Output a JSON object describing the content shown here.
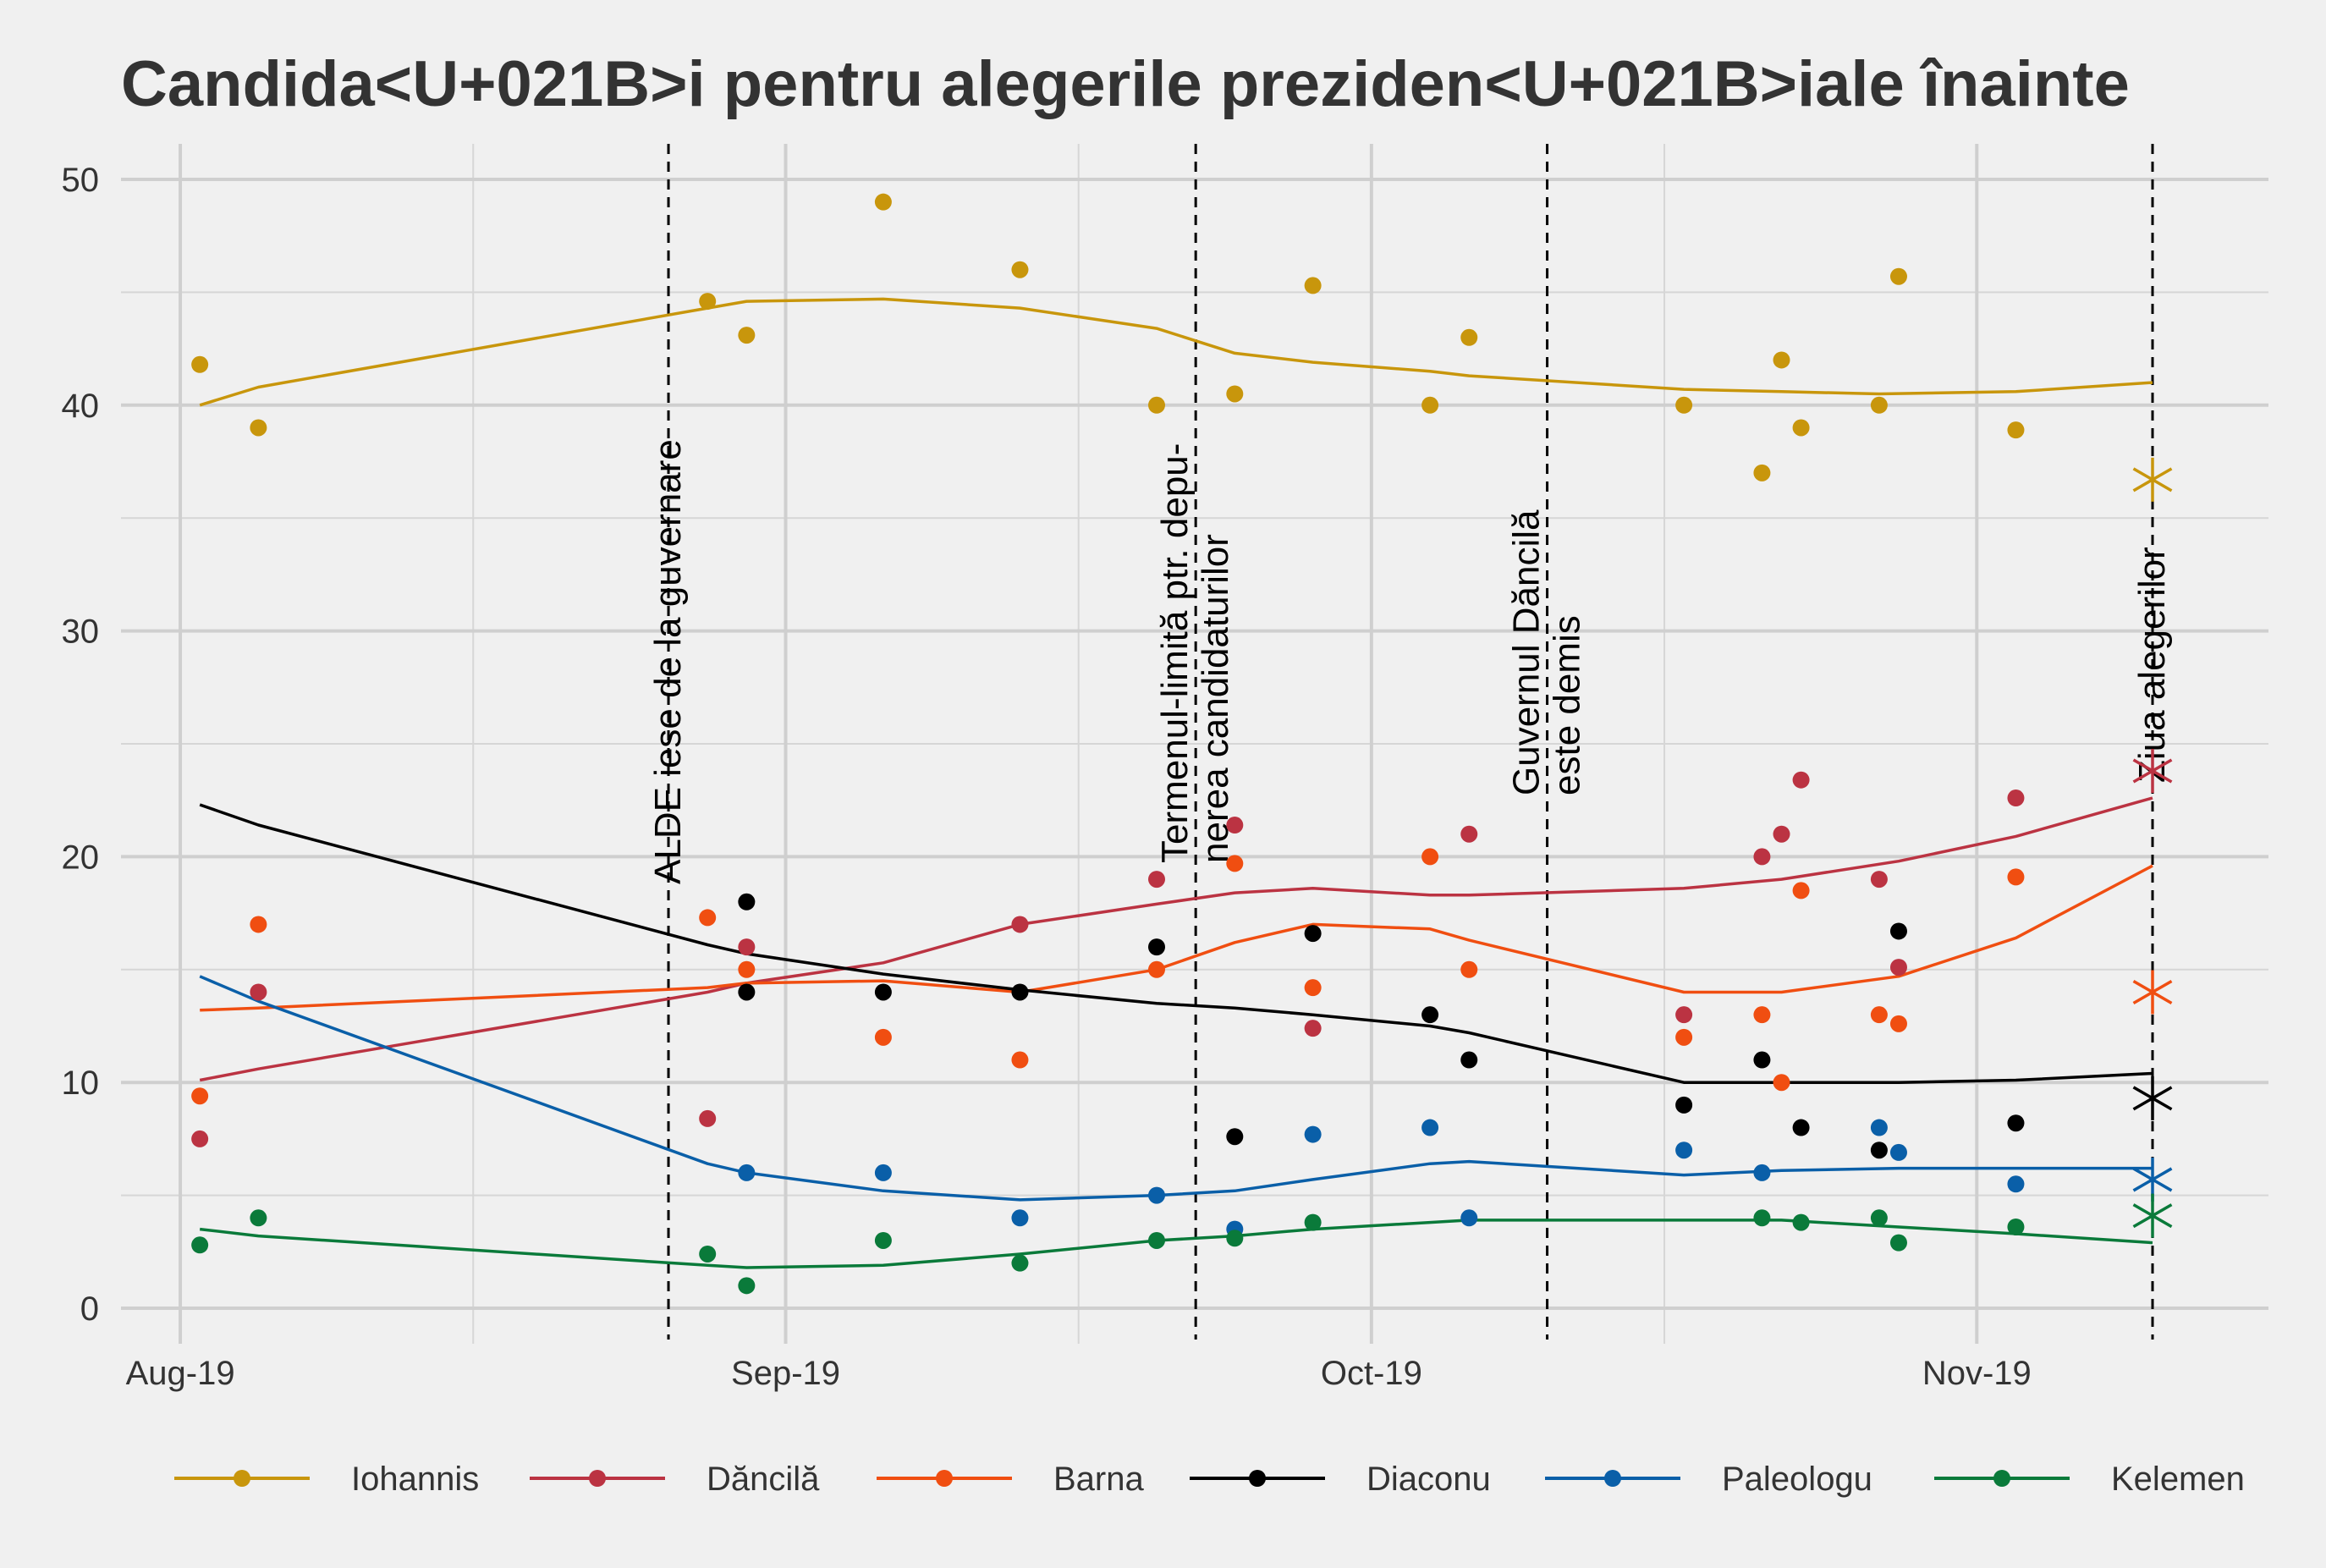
{
  "chart_data": {
    "type": "line",
    "title": "Candida<U+021B>i pentru alegerile preziden<U+021B>iale înainte",
    "xlabel": "",
    "ylabel": "",
    "ylim": [
      0,
      50
    ],
    "x_range": [
      "2019-07-31",
      "2019-11-10"
    ],
    "y_ticks": [
      0,
      10,
      20,
      30,
      40,
      50
    ],
    "x_ticks": [
      {
        "date": "2019-08-01",
        "label": "Aug-19"
      },
      {
        "date": "2019-09-01",
        "label": "Sep-19"
      },
      {
        "date": "2019-10-01",
        "label": "Oct-19"
      },
      {
        "date": "2019-11-01",
        "label": "Nov-19"
      }
    ],
    "grid": true,
    "legend_position": "bottom",
    "events": [
      {
        "date": "2019-08-26",
        "lines": [
          "ALDE iese de la guvernare"
        ]
      },
      {
        "date": "2019-09-22",
        "lines": [
          "Termenul-limită ptr. depu-",
          "nerea candidaturilor"
        ]
      },
      {
        "date": "2019-10-10",
        "lines": [
          "Guvernul Dăncilă",
          "este demis"
        ]
      },
      {
        "date": "2019-11-10",
        "lines": [
          "Ziua alegerilor"
        ]
      }
    ],
    "series": [
      {
        "name": "Iohannis",
        "color": "#c8960c",
        "points": [
          [
            "2019-08-02",
            41.8
          ],
          [
            "2019-08-05",
            39.0
          ],
          [
            "2019-08-28",
            44.6
          ],
          [
            "2019-08-30",
            43.1
          ],
          [
            "2019-09-06",
            49.0
          ],
          [
            "2019-09-13",
            46.0
          ],
          [
            "2019-09-20",
            40.0
          ],
          [
            "2019-09-24",
            40.5
          ],
          [
            "2019-09-28",
            45.3
          ],
          [
            "2019-10-04",
            40.0
          ],
          [
            "2019-10-06",
            43.0
          ],
          [
            "2019-10-17",
            40.0
          ],
          [
            "2019-10-21",
            37.0
          ],
          [
            "2019-10-22",
            42.0
          ],
          [
            "2019-10-23",
            39.0
          ],
          [
            "2019-10-27",
            40.0
          ],
          [
            "2019-10-28",
            45.7
          ],
          [
            "2019-11-03",
            38.9
          ]
        ],
        "trend": [
          [
            "2019-08-02",
            40.0
          ],
          [
            "2019-08-05",
            40.8
          ],
          [
            "2019-08-28",
            44.3
          ],
          [
            "2019-08-30",
            44.6
          ],
          [
            "2019-09-06",
            44.7
          ],
          [
            "2019-09-13",
            44.3
          ],
          [
            "2019-09-20",
            43.4
          ],
          [
            "2019-09-24",
            42.3
          ],
          [
            "2019-09-28",
            41.9
          ],
          [
            "2019-10-04",
            41.5
          ],
          [
            "2019-10-06",
            41.3
          ],
          [
            "2019-10-17",
            40.7
          ],
          [
            "2019-10-22",
            40.6
          ],
          [
            "2019-10-27",
            40.5
          ],
          [
            "2019-11-03",
            40.6
          ],
          [
            "2019-11-10",
            41.0
          ]
        ],
        "result": 36.7
      },
      {
        "name": "Dăncilă",
        "color": "#bb3342",
        "points": [
          [
            "2019-08-02",
            7.5
          ],
          [
            "2019-08-05",
            14.0
          ],
          [
            "2019-08-28",
            8.4
          ],
          [
            "2019-08-30",
            16.0
          ],
          [
            "2019-09-13",
            17.0
          ],
          [
            "2019-09-20",
            19.0
          ],
          [
            "2019-09-24",
            21.4
          ],
          [
            "2019-09-28",
            12.4
          ],
          [
            "2019-10-06",
            21.0
          ],
          [
            "2019-10-17",
            13.0
          ],
          [
            "2019-10-21",
            20.0
          ],
          [
            "2019-10-22",
            21.0
          ],
          [
            "2019-10-23",
            23.4
          ],
          [
            "2019-10-27",
            19.0
          ],
          [
            "2019-10-28",
            15.1
          ],
          [
            "2019-11-03",
            22.6
          ]
        ],
        "trend": [
          [
            "2019-08-02",
            10.1
          ],
          [
            "2019-08-05",
            10.6
          ],
          [
            "2019-08-28",
            14.0
          ],
          [
            "2019-08-30",
            14.4
          ],
          [
            "2019-09-06",
            15.3
          ],
          [
            "2019-09-13",
            17.0
          ],
          [
            "2019-09-20",
            17.9
          ],
          [
            "2019-09-24",
            18.4
          ],
          [
            "2019-09-28",
            18.6
          ],
          [
            "2019-10-04",
            18.3
          ],
          [
            "2019-10-06",
            18.3
          ],
          [
            "2019-10-17",
            18.6
          ],
          [
            "2019-10-22",
            19.0
          ],
          [
            "2019-10-28",
            19.8
          ],
          [
            "2019-11-03",
            20.9
          ],
          [
            "2019-11-10",
            22.6
          ]
        ],
        "result": 23.8
      },
      {
        "name": "Barna",
        "color": "#f04e11",
        "points": [
          [
            "2019-08-02",
            9.4
          ],
          [
            "2019-08-05",
            17.0
          ],
          [
            "2019-08-28",
            17.3
          ],
          [
            "2019-08-30",
            15.0
          ],
          [
            "2019-09-06",
            12.0
          ],
          [
            "2019-09-13",
            11.0
          ],
          [
            "2019-09-20",
            15.0
          ],
          [
            "2019-09-24",
            19.7
          ],
          [
            "2019-09-28",
            14.2
          ],
          [
            "2019-10-04",
            20.0
          ],
          [
            "2019-10-06",
            15.0
          ],
          [
            "2019-10-17",
            12.0
          ],
          [
            "2019-10-21",
            13.0
          ],
          [
            "2019-10-22",
            10.0
          ],
          [
            "2019-10-23",
            18.5
          ],
          [
            "2019-10-27",
            13.0
          ],
          [
            "2019-10-28",
            12.6
          ],
          [
            "2019-11-03",
            19.1
          ]
        ],
        "trend": [
          [
            "2019-08-02",
            13.2
          ],
          [
            "2019-08-05",
            13.3
          ],
          [
            "2019-08-28",
            14.2
          ],
          [
            "2019-08-30",
            14.4
          ],
          [
            "2019-09-06",
            14.5
          ],
          [
            "2019-09-13",
            14.0
          ],
          [
            "2019-09-20",
            15.0
          ],
          [
            "2019-09-24",
            16.2
          ],
          [
            "2019-09-28",
            17.0
          ],
          [
            "2019-10-04",
            16.8
          ],
          [
            "2019-10-06",
            16.3
          ],
          [
            "2019-10-17",
            14.0
          ],
          [
            "2019-10-22",
            14.0
          ],
          [
            "2019-10-28",
            14.7
          ],
          [
            "2019-11-03",
            16.4
          ],
          [
            "2019-11-10",
            19.6
          ]
        ],
        "result": 14.0
      },
      {
        "name": "Diaconu",
        "color": "#000000",
        "points": [
          [
            "2019-08-30",
            18.0
          ],
          [
            "2019-08-30",
            14.0
          ],
          [
            "2019-09-06",
            14.0
          ],
          [
            "2019-09-13",
            14.0
          ],
          [
            "2019-09-20",
            16.0
          ],
          [
            "2019-09-24",
            7.6
          ],
          [
            "2019-09-28",
            16.6
          ],
          [
            "2019-10-04",
            13.0
          ],
          [
            "2019-10-06",
            11.0
          ],
          [
            "2019-10-17",
            9.0
          ],
          [
            "2019-10-21",
            11.0
          ],
          [
            "2019-10-23",
            8.0
          ],
          [
            "2019-10-27",
            7.0
          ],
          [
            "2019-10-28",
            16.7
          ],
          [
            "2019-11-03",
            8.2
          ]
        ],
        "trend": [
          [
            "2019-08-02",
            22.3
          ],
          [
            "2019-08-05",
            21.4
          ],
          [
            "2019-08-28",
            16.1
          ],
          [
            "2019-08-30",
            15.7
          ],
          [
            "2019-09-06",
            14.8
          ],
          [
            "2019-09-13",
            14.1
          ],
          [
            "2019-09-20",
            13.5
          ],
          [
            "2019-09-24",
            13.3
          ],
          [
            "2019-09-28",
            13.0
          ],
          [
            "2019-10-04",
            12.5
          ],
          [
            "2019-10-06",
            12.2
          ],
          [
            "2019-10-17",
            10.0
          ],
          [
            "2019-10-22",
            10.0
          ],
          [
            "2019-10-28",
            10.0
          ],
          [
            "2019-11-03",
            10.1
          ],
          [
            "2019-11-10",
            10.4
          ]
        ],
        "result": 9.3
      },
      {
        "name": "Paleologu",
        "color": "#0a5fa8",
        "points": [
          [
            "2019-08-30",
            6.0
          ],
          [
            "2019-09-06",
            6.0
          ],
          [
            "2019-09-13",
            4.0
          ],
          [
            "2019-09-20",
            5.0
          ],
          [
            "2019-09-24",
            3.5
          ],
          [
            "2019-09-28",
            7.7
          ],
          [
            "2019-10-04",
            8.0
          ],
          [
            "2019-10-06",
            4.0
          ],
          [
            "2019-10-17",
            7.0
          ],
          [
            "2019-10-21",
            6.0
          ],
          [
            "2019-10-27",
            8.0
          ],
          [
            "2019-10-28",
            6.9
          ],
          [
            "2019-11-03",
            5.5
          ]
        ],
        "trend": [
          [
            "2019-08-02",
            14.7
          ],
          [
            "2019-08-05",
            13.6
          ],
          [
            "2019-08-28",
            6.4
          ],
          [
            "2019-08-30",
            6.0
          ],
          [
            "2019-09-06",
            5.2
          ],
          [
            "2019-09-13",
            4.8
          ],
          [
            "2019-09-20",
            5.0
          ],
          [
            "2019-09-24",
            5.2
          ],
          [
            "2019-09-28",
            5.7
          ],
          [
            "2019-10-04",
            6.4
          ],
          [
            "2019-10-06",
            6.5
          ],
          [
            "2019-10-17",
            5.9
          ],
          [
            "2019-10-22",
            6.1
          ],
          [
            "2019-10-28",
            6.2
          ],
          [
            "2019-11-03",
            6.2
          ],
          [
            "2019-11-10",
            6.2
          ]
        ],
        "result": 5.7
      },
      {
        "name": "Kelemen",
        "color": "#0a7a3a",
        "points": [
          [
            "2019-08-02",
            2.8
          ],
          [
            "2019-08-05",
            4.0
          ],
          [
            "2019-08-28",
            2.4
          ],
          [
            "2019-08-30",
            1.0
          ],
          [
            "2019-09-06",
            3.0
          ],
          [
            "2019-09-13",
            2.0
          ],
          [
            "2019-09-20",
            3.0
          ],
          [
            "2019-09-24",
            3.1
          ],
          [
            "2019-09-28",
            3.8
          ],
          [
            "2019-10-21",
            4.0
          ],
          [
            "2019-10-23",
            3.8
          ],
          [
            "2019-10-27",
            4.0
          ],
          [
            "2019-10-28",
            2.9
          ],
          [
            "2019-11-03",
            3.6
          ]
        ],
        "trend": [
          [
            "2019-08-02",
            3.5
          ],
          [
            "2019-08-05",
            3.2
          ],
          [
            "2019-08-28",
            1.9
          ],
          [
            "2019-08-30",
            1.8
          ],
          [
            "2019-09-06",
            1.9
          ],
          [
            "2019-09-13",
            2.4
          ],
          [
            "2019-09-20",
            3.0
          ],
          [
            "2019-09-24",
            3.2
          ],
          [
            "2019-09-28",
            3.5
          ],
          [
            "2019-10-04",
            3.8
          ],
          [
            "2019-10-06",
            3.9
          ],
          [
            "2019-10-17",
            3.9
          ],
          [
            "2019-10-22",
            3.9
          ],
          [
            "2019-10-28",
            3.6
          ],
          [
            "2019-11-03",
            3.3
          ],
          [
            "2019-11-10",
            2.9
          ]
        ],
        "result": 4.1
      }
    ]
  }
}
